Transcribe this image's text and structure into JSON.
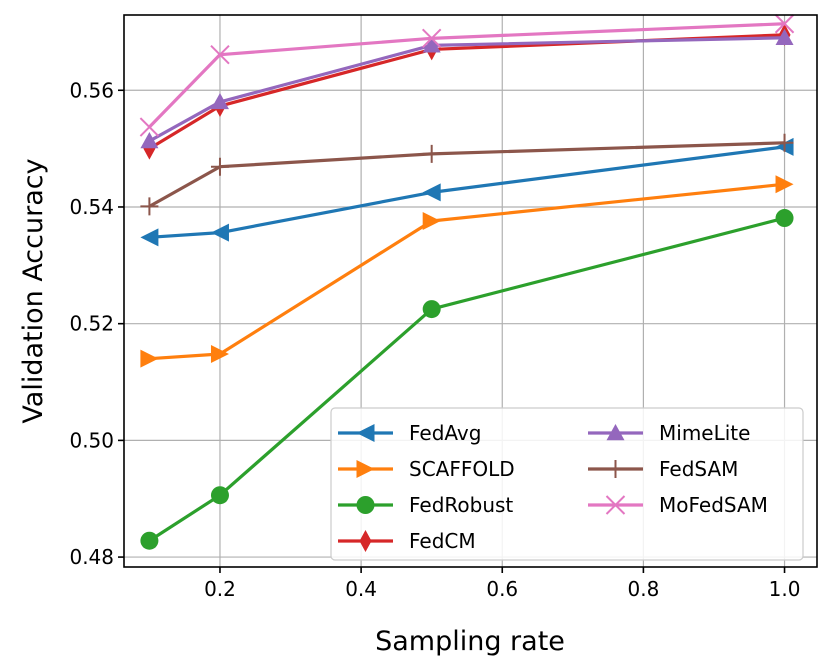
{
  "chart_data": {
    "type": "line",
    "xlabel": "Sampling rate",
    "ylabel": "Validation Accuracy",
    "xlim": [
      0.064,
      1.046
    ],
    "ylim": [
      0.4783,
      0.5729
    ],
    "xticks": [
      0.2,
      0.4,
      0.6,
      0.8,
      1.0
    ],
    "xtick_labels": [
      "0.2",
      "0.4",
      "0.6",
      "0.8",
      "1.0"
    ],
    "yticks": [
      0.48,
      0.5,
      0.52,
      0.54,
      0.56
    ],
    "ytick_labels": [
      "0.48",
      "0.50",
      "0.52",
      "0.54",
      "0.56"
    ],
    "grid": true,
    "legend_position": "lower-right",
    "legend_columns": 2,
    "x": [
      0.1,
      0.2,
      0.5,
      1.0
    ],
    "series": [
      {
        "name": "FedAvg",
        "color": "#1f77b4",
        "marker": "triangle-left",
        "values": [
          0.5348,
          0.5356,
          0.5425,
          0.5503
        ]
      },
      {
        "name": "SCAFFOLD",
        "color": "#ff7f0e",
        "marker": "triangle-right",
        "values": [
          0.514,
          0.5148,
          0.5376,
          0.5439
        ]
      },
      {
        "name": "FedRobust",
        "color": "#2ca02c",
        "marker": "circle",
        "values": [
          0.4828,
          0.4906,
          0.5225,
          0.5381
        ]
      },
      {
        "name": "FedCM",
        "color": "#d62728",
        "marker": "thin-diamond",
        "values": [
          0.55,
          0.5573,
          0.567,
          0.5695
        ]
      },
      {
        "name": "MimeLite",
        "color": "#9467bd",
        "marker": "triangle-up",
        "values": [
          0.5513,
          0.558,
          0.5677,
          0.569
        ]
      },
      {
        "name": "FedSAM",
        "color": "#8c564b",
        "marker": "plus",
        "values": [
          0.5401,
          0.5469,
          0.5491,
          0.551
        ]
      },
      {
        "name": "MoFedSAM",
        "color": "#e377c2",
        "marker": "x",
        "values": [
          0.5537,
          0.5661,
          0.5689,
          0.5714
        ]
      }
    ]
  }
}
